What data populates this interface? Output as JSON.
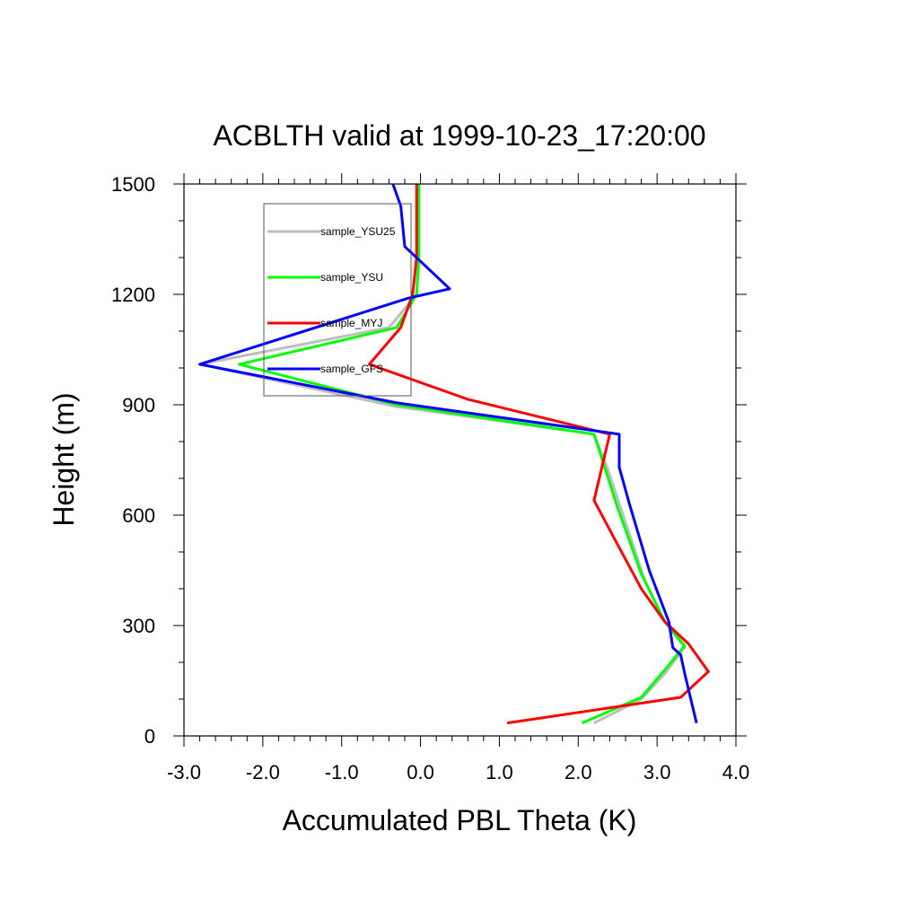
{
  "chart_data": {
    "type": "line",
    "title": "ACBLTH valid at 1999-10-23_17:20:00",
    "xlabel": "Accumulated PBL Theta (K)",
    "ylabel": "Height (m)",
    "xlim": [
      -3.0,
      4.0
    ],
    "ylim": [
      0,
      1500
    ],
    "xticks": [
      -3.0,
      -2.0,
      -1.0,
      0.0,
      1.0,
      2.0,
      3.0,
      4.0
    ],
    "xtick_labels": [
      "-3.0",
      "-2.0",
      "-1.0",
      "0.0",
      "1.0",
      "2.0",
      "3.0",
      "4.0"
    ],
    "yticks": [
      0,
      300,
      600,
      900,
      1200,
      1500
    ],
    "ytick_labels": [
      "0",
      "300",
      "600",
      "900",
      "1200",
      "1500"
    ],
    "grid": false,
    "legend_position": "top-left",
    "series": [
      {
        "name": "sample_YSU25",
        "color": "#bebebe",
        "points": [
          [
            2.2,
            35
          ],
          [
            2.8,
            100
          ],
          [
            3.1,
            170
          ],
          [
            3.35,
            240
          ],
          [
            3.1,
            310
          ],
          [
            2.85,
            420
          ],
          [
            2.6,
            580
          ],
          [
            2.35,
            740
          ],
          [
            2.2,
            820
          ],
          [
            -0.3,
            895
          ],
          [
            -2.8,
            1010
          ],
          [
            -0.4,
            1110
          ],
          [
            -0.05,
            1200
          ],
          [
            -0.02,
            1300
          ],
          [
            -0.02,
            1500
          ]
        ]
      },
      {
        "name": "sample_YSU",
        "color": "#00ff00",
        "points": [
          [
            2.05,
            35
          ],
          [
            2.8,
            105
          ],
          [
            3.1,
            180
          ],
          [
            3.35,
            245
          ],
          [
            3.1,
            310
          ],
          [
            2.8,
            440
          ],
          [
            2.5,
            620
          ],
          [
            2.2,
            820
          ],
          [
            -0.3,
            900
          ],
          [
            -2.3,
            1010
          ],
          [
            -0.3,
            1110
          ],
          [
            -0.05,
            1200
          ],
          [
            -0.02,
            1300
          ],
          [
            -0.02,
            1500
          ]
        ]
      },
      {
        "name": "sample_MYJ",
        "color": "#ff0000",
        "points": [
          [
            1.1,
            35
          ],
          [
            3.3,
            105
          ],
          [
            3.65,
            175
          ],
          [
            3.4,
            250
          ],
          [
            3.1,
            310
          ],
          [
            2.8,
            400
          ],
          [
            2.5,
            520
          ],
          [
            2.2,
            640
          ],
          [
            2.4,
            820
          ],
          [
            0.6,
            915
          ],
          [
            -0.65,
            1010
          ],
          [
            -0.25,
            1110
          ],
          [
            -0.1,
            1200
          ],
          [
            -0.05,
            1300
          ],
          [
            -0.05,
            1500
          ]
        ]
      },
      {
        "name": "sample_GFS",
        "color": "#0000ff",
        "points": [
          [
            3.5,
            35
          ],
          [
            3.35,
            170
          ],
          [
            3.3,
            220
          ],
          [
            3.2,
            240
          ],
          [
            3.15,
            310
          ],
          [
            2.9,
            450
          ],
          [
            2.65,
            630
          ],
          [
            2.52,
            730
          ],
          [
            2.52,
            820
          ],
          [
            -0.3,
            905
          ],
          [
            -2.8,
            1010
          ],
          [
            -0.15,
            1190
          ],
          [
            0.37,
            1215
          ],
          [
            -0.2,
            1330
          ],
          [
            -0.25,
            1440
          ],
          [
            -0.35,
            1500
          ]
        ]
      }
    ]
  }
}
